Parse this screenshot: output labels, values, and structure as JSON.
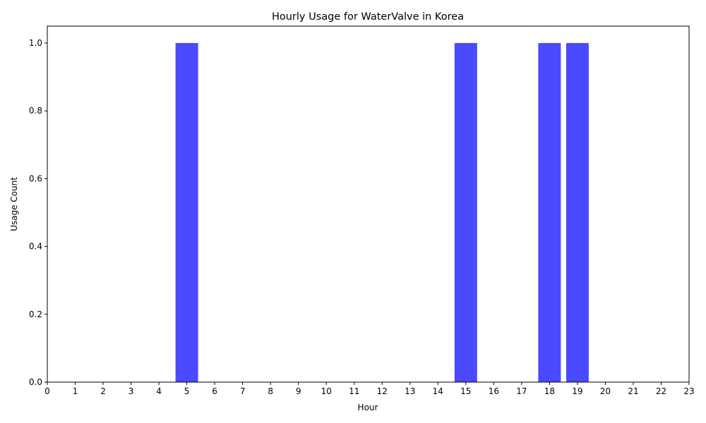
{
  "chart_data": {
    "type": "bar",
    "title": "Hourly Usage for WaterValve in Korea",
    "xlabel": "Hour",
    "ylabel": "Usage Count",
    "categories": [
      "0",
      "1",
      "2",
      "3",
      "4",
      "5",
      "6",
      "7",
      "8",
      "9",
      "10",
      "11",
      "12",
      "13",
      "14",
      "15",
      "16",
      "17",
      "18",
      "19",
      "20",
      "21",
      "22",
      "23"
    ],
    "values": [
      0,
      0,
      0,
      0,
      0,
      1,
      0,
      0,
      0,
      0,
      0,
      0,
      0,
      0,
      0,
      1,
      0,
      0,
      1,
      1,
      0,
      0,
      0,
      0
    ],
    "ylim": [
      0,
      1.05
    ],
    "yticks": [
      "0.0",
      "0.2",
      "0.4",
      "0.6",
      "0.8",
      "1.0"
    ],
    "ytick_values": [
      0,
      0.2,
      0.4,
      0.6,
      0.8,
      1.0
    ],
    "bar_color": "#4a4aff",
    "grid": false,
    "legend": "none"
  }
}
